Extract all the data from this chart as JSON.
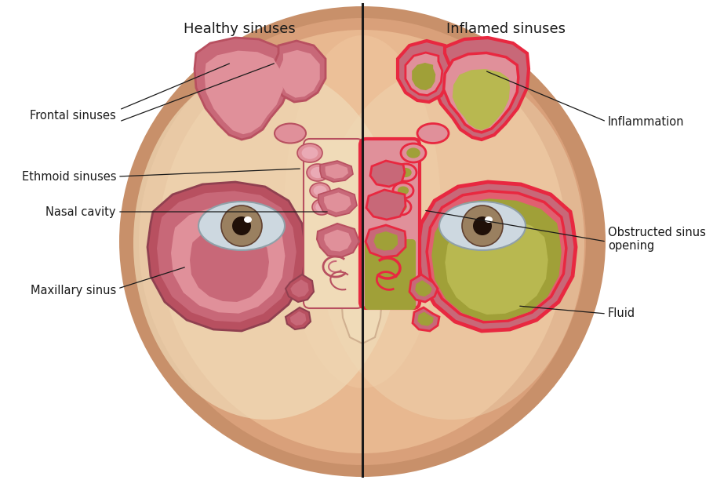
{
  "title_left": "Healthy sinuses",
  "title_right": "Inflamed sinuses",
  "white_bg": "#ffffff",
  "skin_outer": "#c8906a",
  "skin_mid": "#d9a07a",
  "skin_inner": "#e8b890",
  "skin_light": "#f0c8a0",
  "cream_wall": "#f0dbb8",
  "pink_dark": "#b85060",
  "pink_mid": "#c86878",
  "pink_light": "#e0909a",
  "pink_pale": "#eaaab5",
  "red_inflamed": "#e82840",
  "red_border": "#cc2030",
  "olive_green": "#a0a038",
  "olive_light": "#b8b850",
  "eye_white": "#cdd8e0",
  "iris_color": "#8a7250",
  "pupil_color": "#201008",
  "divider_color": "#1a1a1a",
  "label_color": "#1a1a1a",
  "labels_left": [
    "Frontal sinuses",
    "Ethmoid sinuses",
    "Nasal cavity",
    "Maxillary sinus"
  ],
  "labels_right": [
    "Inflammation",
    "Obstructed sinus\nopening",
    "Fluid"
  ],
  "fig_width": 9.23,
  "fig_height": 6.12
}
